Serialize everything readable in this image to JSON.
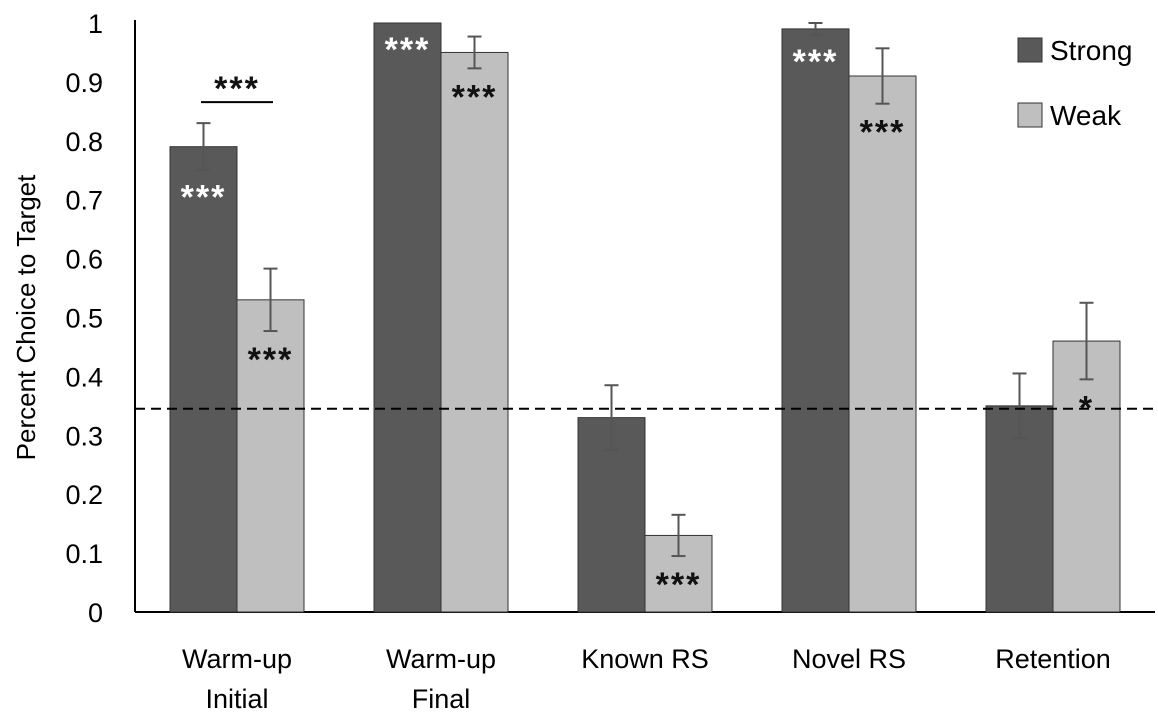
{
  "chart_data": {
    "type": "bar",
    "title": "",
    "xlabel": "",
    "ylabel": "Percent Choice to Target",
    "ylim": [
      0,
      1
    ],
    "yticks": [
      "0",
      "0.1",
      "0.2",
      "0.3",
      "0.4",
      "0.5",
      "0.6",
      "0.7",
      "0.8",
      "0.9",
      "1"
    ],
    "grid": false,
    "legend_position": "top-right",
    "categories": [
      [
        "Warm-up",
        "Initial"
      ],
      [
        "Warm-up",
        "Final"
      ],
      [
        "Known RS"
      ],
      [
        "Novel RS"
      ],
      [
        "Retention"
      ]
    ],
    "series": [
      {
        "name": "Strong",
        "color": "#595959",
        "values": [
          0.79,
          1.0,
          0.33,
          0.99,
          0.35
        ],
        "errors": [
          0.04,
          0.0,
          0.055,
          0.01,
          0.055
        ],
        "significance": [
          "***",
          "***",
          "",
          "***",
          ""
        ]
      },
      {
        "name": "Weak",
        "color": "#bfbfbf",
        "values": [
          0.53,
          0.95,
          0.13,
          0.91,
          0.46
        ],
        "errors": [
          0.053,
          0.027,
          0.035,
          0.047,
          0.065
        ],
        "significance": [
          "***",
          "***",
          "***",
          "***",
          "*"
        ]
      }
    ],
    "chance_line": 0.345,
    "comparison_annotations": [
      {
        "category_index": 0,
        "label": "***"
      }
    ]
  }
}
